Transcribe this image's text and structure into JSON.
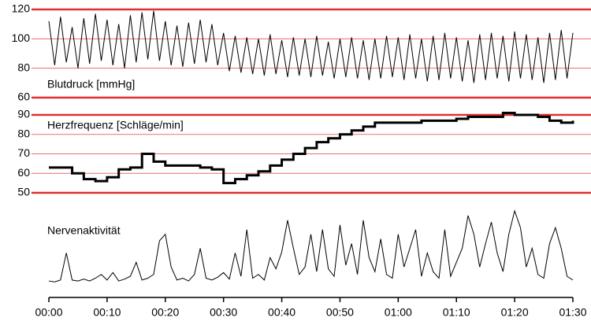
{
  "chart_data": [
    {
      "type": "line",
      "label": "Blutdruck [mmHg]",
      "color": "#000000",
      "grid_color": "#e03030",
      "x": [
        0,
        1,
        2,
        3,
        4,
        5,
        6,
        7,
        8,
        9,
        10,
        11,
        12,
        13,
        14,
        15,
        16,
        17,
        18,
        19,
        20,
        21,
        22,
        23,
        24,
        25,
        26,
        27,
        28,
        29,
        30,
        31,
        32,
        33,
        34,
        35,
        36,
        37,
        38,
        39,
        40,
        41,
        42,
        43,
        44,
        45,
        46,
        47,
        48,
        49,
        50,
        51,
        52,
        53,
        54,
        55,
        56,
        57,
        58,
        59,
        60,
        61,
        62,
        63,
        64,
        65,
        66,
        67,
        68,
        69,
        70,
        71,
        72,
        73,
        74,
        75,
        76,
        77,
        78,
        79,
        80,
        81,
        82,
        83,
        84,
        85,
        86,
        87,
        88,
        89,
        90
      ],
      "values": [
        112,
        82,
        115,
        84,
        108,
        80,
        114,
        83,
        117,
        85,
        113,
        82,
        110,
        80,
        116,
        84,
        118,
        86,
        119,
        85,
        112,
        82,
        109,
        81,
        111,
        83,
        113,
        84,
        110,
        82,
        104,
        78,
        102,
        77,
        101,
        76,
        100,
        75,
        103,
        76,
        99,
        74,
        101,
        75,
        100,
        74,
        102,
        75,
        98,
        73,
        100,
        74,
        101,
        73,
        99,
        72,
        100,
        73,
        102,
        74,
        101,
        72,
        103,
        73,
        100,
        71,
        102,
        72,
        104,
        73,
        101,
        71,
        99,
        70,
        103,
        72,
        104,
        73,
        102,
        71,
        105,
        73,
        103,
        72,
        101,
        70,
        104,
        72,
        106,
        73,
        104
      ],
      "xlim": [
        0,
        90
      ],
      "ylim": [
        60,
        120
      ],
      "yticks": [
        60,
        80,
        100,
        120
      ]
    },
    {
      "type": "step",
      "label": "Herzfrequenz [Schläge/min]",
      "color": "#000000",
      "grid_color": "#e03030",
      "x": [
        0,
        2,
        4,
        6,
        8,
        10,
        12,
        14,
        16,
        18,
        20,
        22,
        24,
        26,
        28,
        30,
        32,
        34,
        36,
        38,
        40,
        42,
        44,
        46,
        48,
        50,
        52,
        54,
        56,
        58,
        60,
        62,
        64,
        66,
        68,
        70,
        72,
        74,
        76,
        78,
        80,
        82,
        84,
        86,
        88,
        90
      ],
      "values": [
        63,
        63,
        60,
        57,
        56,
        58,
        62,
        63,
        70,
        66,
        64,
        64,
        64,
        63,
        62,
        55,
        57,
        59,
        61,
        64,
        67,
        70,
        73,
        76,
        78,
        80,
        82,
        84,
        86,
        86,
        86,
        86,
        87,
        87,
        87,
        88,
        89,
        89,
        89,
        91,
        90,
        90,
        89,
        87,
        86,
        87
      ],
      "xlim": [
        0,
        90
      ],
      "ylim": [
        50,
        90
      ],
      "yticks": [
        50,
        60,
        70,
        80,
        90
      ]
    },
    {
      "type": "trace",
      "label": "Nervenaktivität",
      "color": "#000000",
      "x": [
        0,
        1,
        2,
        3,
        4,
        5,
        6,
        7,
        8,
        9,
        10,
        11,
        12,
        13,
        14,
        15,
        16,
        17,
        18,
        19,
        20,
        21,
        22,
        23,
        24,
        25,
        26,
        27,
        28,
        29,
        30,
        31,
        32,
        33,
        34,
        35,
        36,
        37,
        38,
        39,
        40,
        41,
        42,
        43,
        44,
        45,
        46,
        47,
        48,
        49,
        50,
        51,
        52,
        53,
        54,
        55,
        56,
        57,
        58,
        59,
        60,
        61,
        62,
        63,
        64,
        65,
        66,
        67,
        68,
        69,
        70,
        71,
        72,
        73,
        74,
        75,
        76,
        77,
        78,
        79,
        80,
        81,
        82,
        83,
        84,
        85,
        86,
        87,
        88,
        89,
        90
      ],
      "values": [
        5,
        4,
        6,
        35,
        6,
        5,
        7,
        5,
        8,
        12,
        6,
        14,
        5,
        7,
        10,
        25,
        6,
        8,
        12,
        48,
        55,
        20,
        6,
        8,
        5,
        12,
        40,
        8,
        6,
        9,
        14,
        7,
        35,
        10,
        60,
        8,
        12,
        6,
        30,
        18,
        36,
        70,
        40,
        12,
        20,
        55,
        15,
        60,
        18,
        10,
        65,
        22,
        45,
        12,
        70,
        30,
        15,
        50,
        12,
        8,
        55,
        20,
        40,
        60,
        10,
        35,
        15,
        8,
        60,
        10,
        25,
        40,
        75,
        55,
        20,
        45,
        68,
        35,
        15,
        55,
        80,
        62,
        20,
        40,
        12,
        8,
        45,
        62,
        40,
        10,
        6
      ],
      "xlim": [
        0,
        90
      ],
      "xticks": [
        {
          "value": 0,
          "label": "00:00"
        },
        {
          "value": 10,
          "label": "00:10"
        },
        {
          "value": 20,
          "label": "00:20"
        },
        {
          "value": 30,
          "label": "00:30"
        },
        {
          "value": 40,
          "label": "00:40"
        },
        {
          "value": 50,
          "label": "00:50"
        },
        {
          "value": 60,
          "label": "01:00"
        },
        {
          "value": 70,
          "label": "01:10"
        },
        {
          "value": 80,
          "label": "01:20"
        },
        {
          "value": 90,
          "label": "01:30"
        }
      ]
    }
  ]
}
